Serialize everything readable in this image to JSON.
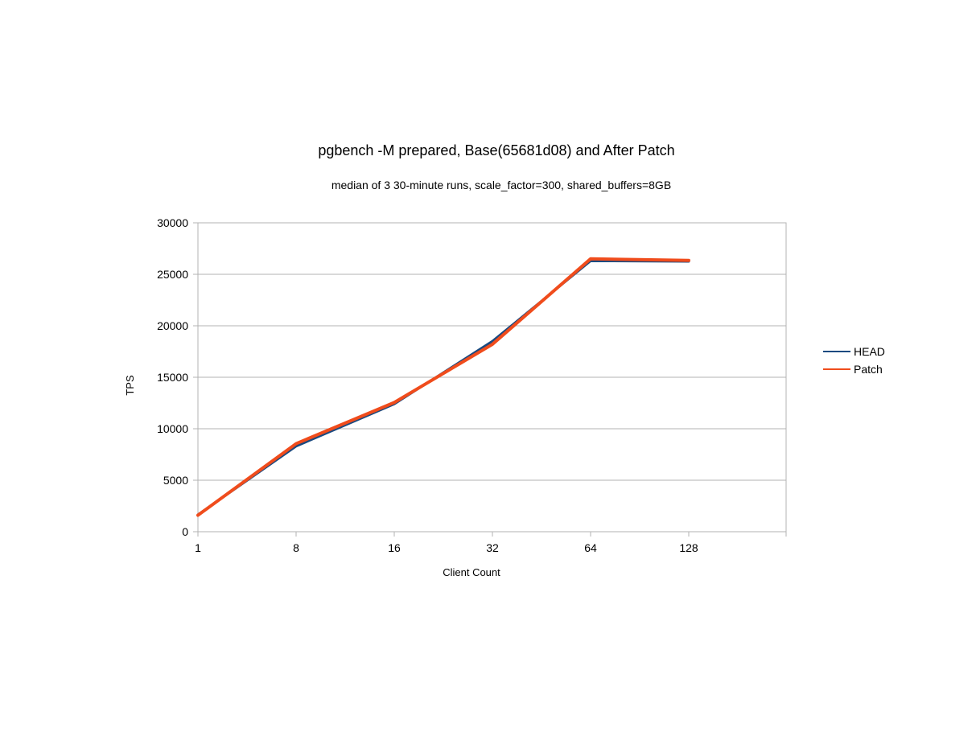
{
  "chart_data": {
    "type": "line",
    "title": "pgbench -M prepared, Base(65681d08) and After Patch",
    "subtitle": "median of 3 30-minute runs, scale_factor=300, shared_buffers=8GB",
    "xlabel": "Client Count",
    "ylabel": "TPS",
    "categories": [
      "1",
      "8",
      "16",
      "32",
      "64",
      "128"
    ],
    "ylim": [
      0,
      30000
    ],
    "yticks": [
      0,
      5000,
      10000,
      15000,
      20000,
      25000,
      30000
    ],
    "grid": true,
    "legend_position": "right",
    "series": [
      {
        "name": "HEAD",
        "color": "#1a4a80",
        "values": [
          1650,
          8300,
          12400,
          18500,
          26300,
          26250
        ]
      },
      {
        "name": "Patch",
        "color": "#f04c1c",
        "values": [
          1600,
          8550,
          12550,
          18200,
          26500,
          26350
        ]
      }
    ]
  }
}
